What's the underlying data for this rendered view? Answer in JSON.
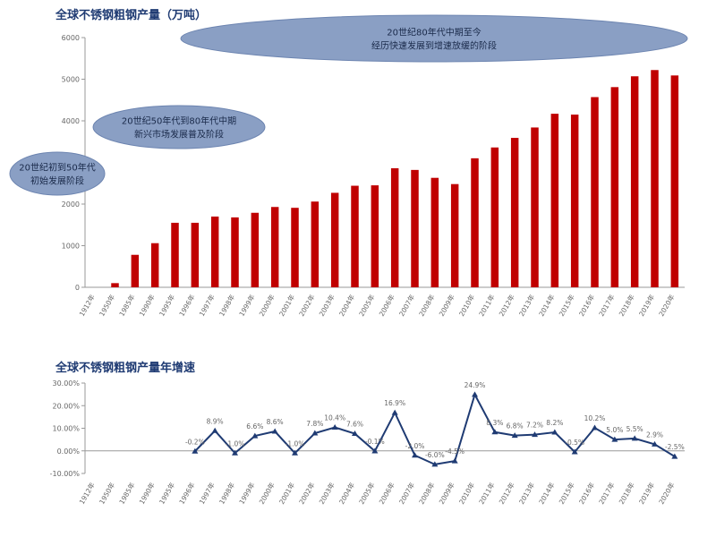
{
  "top_title": "全球不锈钢粗钢产量（万吨）",
  "bottom_title": "全球不锈钢粗钢产量年增速",
  "annotations": {
    "phase1": [
      "20世纪初到50年代",
      "初始发展阶段"
    ],
    "phase2": [
      "20世纪50年代到80年代中期",
      "新兴市场发展普及阶段"
    ],
    "phase3": [
      "20世纪80年代中期至今",
      "经历快速发展到增速放缓的阶段"
    ]
  },
  "colors": {
    "bar": "#c00000",
    "line": "#1f3b73",
    "ellipse": "#8a9fc4",
    "title": "#1f3b73"
  },
  "chart_data": [
    {
      "type": "bar",
      "categories": [
        "1912年",
        "1950年",
        "1985年",
        "1990年",
        "1995年",
        "1996年",
        "1997年",
        "1998年",
        "1999年",
        "2000年",
        "2001年",
        "2002年",
        "2003年",
        "2004年",
        "2005年",
        "2006年",
        "2007年",
        "2008年",
        "2009年",
        "2010年",
        "2011年",
        "2012年",
        "2013年",
        "2014年",
        "2015年",
        "2016年",
        "2017年",
        "2018年",
        "2019年",
        "2020年"
      ],
      "values": [
        0,
        100,
        780,
        1060,
        1550,
        1550,
        1700,
        1680,
        1790,
        1930,
        1910,
        2060,
        2270,
        2440,
        2450,
        2860,
        2820,
        2630,
        2480,
        3100,
        3360,
        3590,
        3840,
        4170,
        4150,
        4570,
        4810,
        5070,
        5220,
        5090
      ],
      "ylim": [
        0,
        6000
      ],
      "yticks": [
        0,
        1000,
        2000,
        3000,
        4000,
        5000,
        6000
      ]
    },
    {
      "type": "line",
      "categories": [
        "1912年",
        "1950年",
        "1985年",
        "1990年",
        "1995年",
        "1996年",
        "1997年",
        "1998年",
        "1999年",
        "2000年",
        "2001年",
        "2002年",
        "2003年",
        "2004年",
        "2005年",
        "2006年",
        "2007年",
        "2008年",
        "2009年",
        "2010年",
        "2011年",
        "2012年",
        "2013年",
        "2014年",
        "2015年",
        "2016年",
        "2017年",
        "2018年",
        "2019年",
        "2020年"
      ],
      "series": [
        {
          "values": [
            null,
            null,
            null,
            null,
            null,
            -0.2,
            8.9,
            -1.0,
            6.6,
            8.6,
            -1.0,
            7.8,
            10.4,
            7.6,
            -0.1,
            16.9,
            -2.0,
            -6.0,
            -4.5,
            24.9,
            8.3,
            6.8,
            7.2,
            8.2,
            -0.5,
            10.2,
            5.0,
            5.5,
            2.9,
            -2.5
          ],
          "labels": [
            "",
            "",
            "",
            "",
            "",
            "-0.2%",
            "8.9%",
            "-1.0%",
            "6.6%",
            "8.6%",
            "-1.0%",
            "7.8%",
            "10.4%",
            "7.6%",
            "-0.1%",
            "16.9%",
            "-2.0%",
            "-6.0%",
            "-4.5%",
            "24.9%",
            "8.3%",
            "6.8%",
            "7.2%",
            "8.2%",
            "-0.5%",
            "10.2%",
            "5.0%",
            "5.5%",
            "2.9%",
            "-2.5%"
          ]
        }
      ],
      "ylim": [
        -10,
        30
      ],
      "yticks": [
        -10,
        0,
        10,
        20,
        30
      ],
      "ytick_labels": [
        "-10.00%",
        "0.00%",
        "10.00%",
        "20.00%",
        "30.00%"
      ]
    }
  ]
}
